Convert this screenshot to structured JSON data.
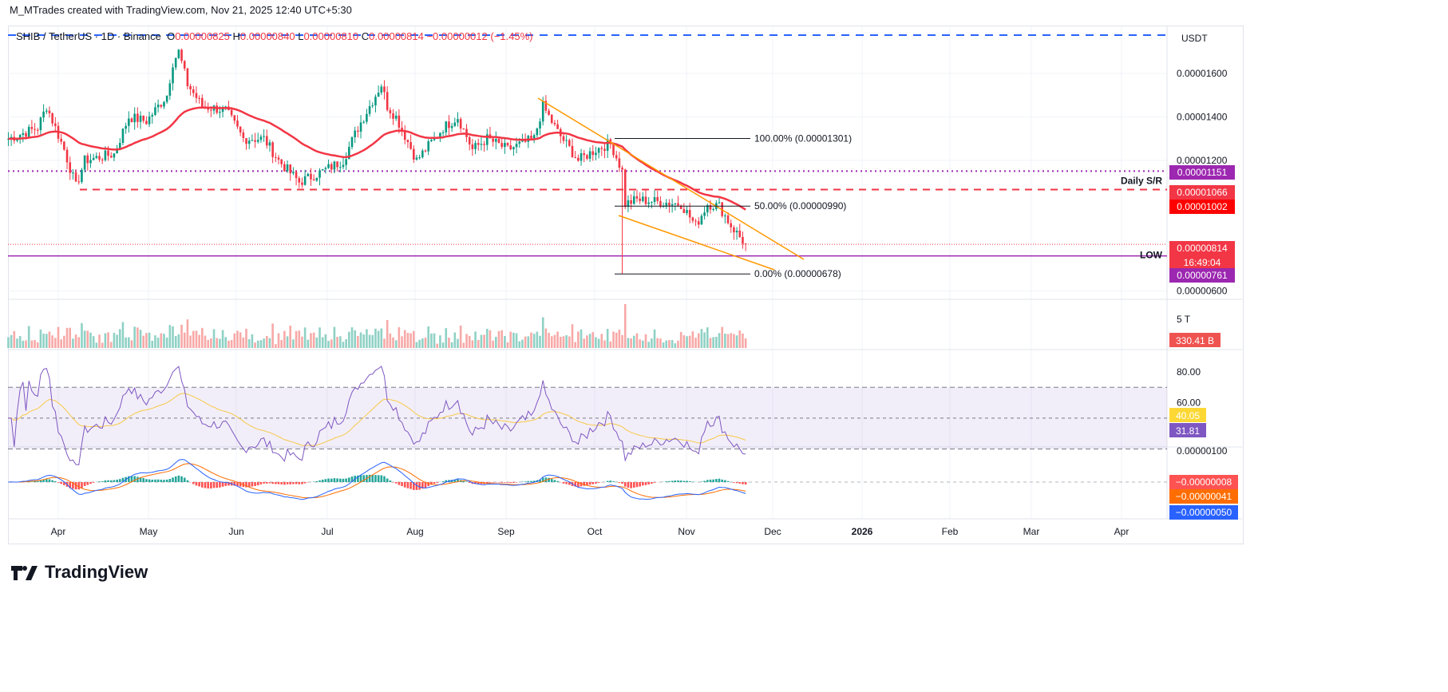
{
  "credit": "M_MTrades created with TradingView.com, Nov 21, 2025 12:40 UTC+5:30",
  "legend": {
    "symbol": "SHIB / TetherUS · 1D · Binance",
    "o_label": "O",
    "o": "0.00000825",
    "h_label": "H",
    "h": "0.00000840",
    "l_label": "L",
    "l": "0.00000810",
    "c_label": "C",
    "c": "0.00000814",
    "change": "−0.00000012 (−1.45%)"
  },
  "currency": "USDT",
  "brand": "TradingView",
  "colors": {
    "up": "#089981",
    "down": "#f23645",
    "ma": "#f23645",
    "rsi": "#7e57c2",
    "rsi_ma": "#f7c948",
    "macd": "#2962ff",
    "signal": "#ff6d00",
    "wedge": "#ff9800",
    "sr_purple": "#9c27b0",
    "blue_dash": "#2962ff"
  },
  "chart_data": {
    "type": "candlestick",
    "x_ticks": [
      "Apr",
      "May",
      "Jun",
      "Jul",
      "Aug",
      "Sep",
      "Oct",
      "Nov",
      "Dec",
      "2026",
      "Feb",
      "Mar",
      "Apr"
    ],
    "y_ticks": [
      "0.00001600",
      "0.00001400",
      "0.00001200",
      "0.00000600"
    ],
    "ylim": [
      5.8e-06,
      1.83e-05
    ],
    "close_path": [
      [
        "2025-03-15",
        13.0
      ],
      [
        "2025-03-25",
        13.5
      ],
      [
        "2025-03-28",
        14.5
      ],
      [
        "2025-04-03",
        12.5
      ],
      [
        "2025-04-07",
        10.8
      ],
      [
        "2025-04-10",
        12.0
      ],
      [
        "2025-04-20",
        12.3
      ],
      [
        "2025-04-25",
        14.0
      ],
      [
        "2025-05-01",
        13.8
      ],
      [
        "2025-05-08",
        15.0
      ],
      [
        "2025-05-10",
        16.5
      ],
      [
        "2025-05-12",
        17.0
      ],
      [
        "2025-05-15",
        15.5
      ],
      [
        "2025-05-20",
        14.5
      ],
      [
        "2025-05-28",
        14.3
      ],
      [
        "2025-06-03",
        13.0
      ],
      [
        "2025-06-10",
        13.0
      ],
      [
        "2025-06-15",
        12.0
      ],
      [
        "2025-06-22",
        11.0
      ],
      [
        "2025-06-30",
        11.5
      ],
      [
        "2025-07-07",
        12.0
      ],
      [
        "2025-07-12",
        13.5
      ],
      [
        "2025-07-20",
        15.5
      ],
      [
        "2025-07-22",
        14.5
      ],
      [
        "2025-07-25",
        14.0
      ],
      [
        "2025-08-01",
        12.0
      ],
      [
        "2025-08-10",
        13.5
      ],
      [
        "2025-08-15",
        14.0
      ],
      [
        "2025-08-20",
        12.5
      ],
      [
        "2025-08-25",
        13.0
      ],
      [
        "2025-09-01",
        12.5
      ],
      [
        "2025-09-10",
        13.0
      ],
      [
        "2025-09-13",
        14.5
      ],
      [
        "2025-09-18",
        13.3
      ],
      [
        "2025-09-25",
        12.0
      ],
      [
        "2025-10-01",
        12.5
      ],
      [
        "2025-10-06",
        12.8
      ],
      [
        "2025-10-10",
        11.5
      ],
      [
        "2025-10-11",
        10.0
      ],
      [
        "2025-10-15",
        10.2
      ],
      [
        "2025-10-22",
        10.1
      ],
      [
        "2025-10-30",
        10.0
      ],
      [
        "2025-11-04",
        9.0
      ],
      [
        "2025-11-08",
        10.0
      ],
      [
        "2025-11-12",
        9.9
      ],
      [
        "2025-11-16",
        9.0
      ],
      [
        "2025-11-21",
        8.14
      ]
    ],
    "price_unit": "1e-6 USDT",
    "flash_crash": {
      "date": "2025-10-10",
      "low": 6.78
    },
    "fib": [
      {
        "label": "100.00% (0.00001301)",
        "value": 13.01
      },
      {
        "label": "50.00% (0.00000990)",
        "value": 9.9
      },
      {
        "label": "0.00% (0.00000678)",
        "value": 6.78
      }
    ],
    "levels": [
      {
        "value": 11.51,
        "tag": "0.00001151",
        "style": "dotted",
        "color": "#9c27b0"
      },
      {
        "value": 10.66,
        "tag": "0.00001066",
        "label": "Daily S/R",
        "style": "dashed",
        "color": "#f23645"
      },
      {
        "value": 10.02,
        "tag": "0.00001002",
        "color": "#ff0000"
      },
      {
        "value": 8.14,
        "tag": "0.00000814",
        "countdown": "16:49:04",
        "color": "#f23645"
      },
      {
        "value": 7.61,
        "tag": "0.00000761",
        "label": "LOW",
        "color": "#9c27b0"
      }
    ],
    "volume": {
      "tick": "5 T",
      "last": "330.41 B"
    },
    "rsi": {
      "ticks": [
        "80.00",
        "60.00"
      ],
      "rsi_last": "31.81",
      "ma_last": "40.05",
      "bands": [
        70,
        50,
        30
      ]
    },
    "macd": {
      "tick": "0.00000100",
      "histogram": "−0.00000008",
      "signal": "−0.00000041",
      "macd": "−0.00000050"
    }
  }
}
